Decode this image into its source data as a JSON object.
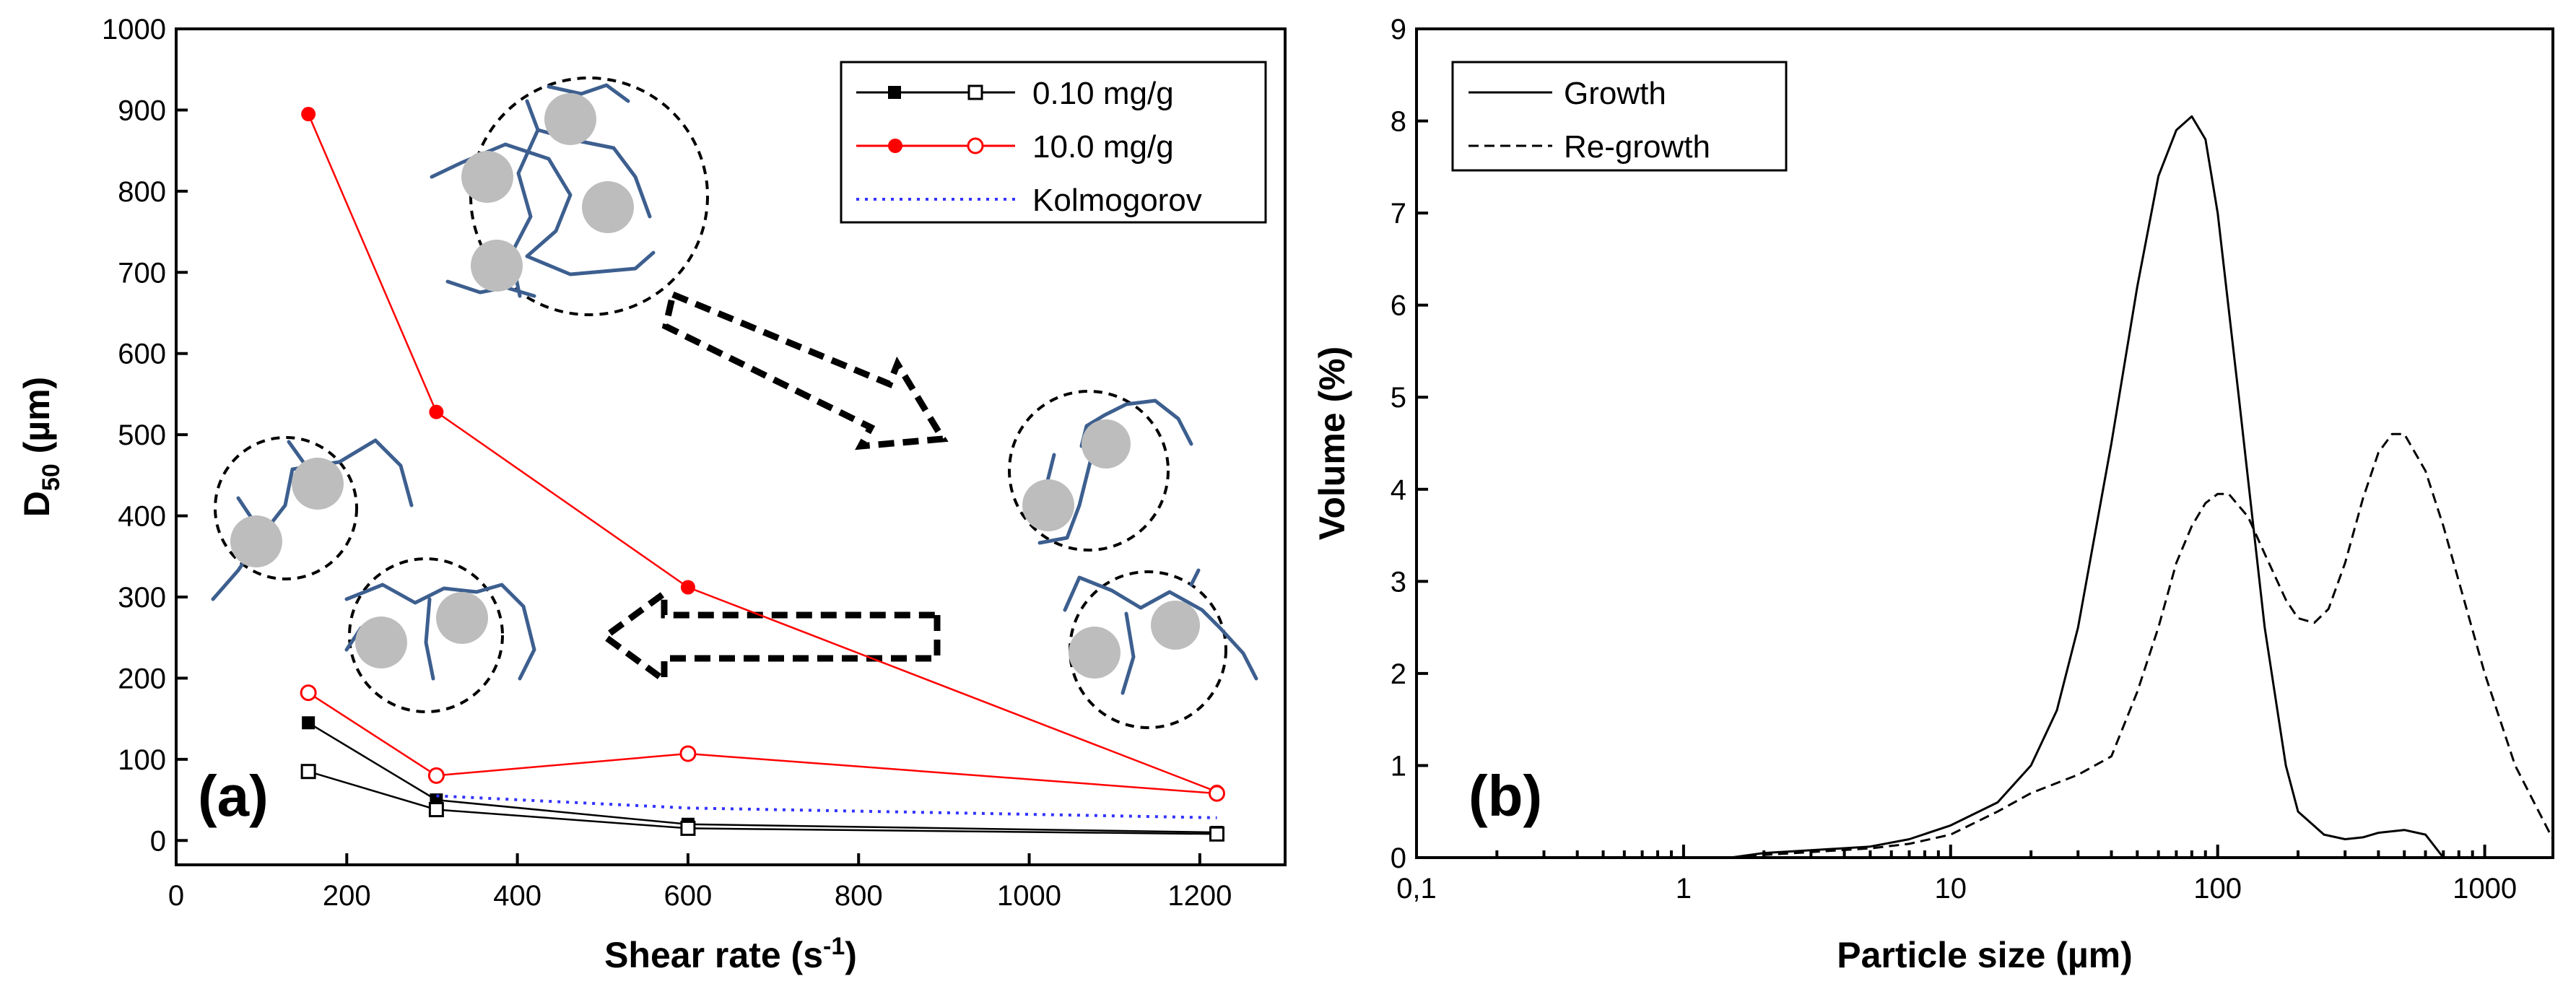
{
  "chart_data": [
    {
      "type": "line",
      "panel_label": "(a)",
      "xlabel": "Shear rate (s",
      "xlabel_sup": "-1",
      "xlabel_end": ")",
      "ylabel": "D",
      "ylabel_sub": "50",
      "ylabel_end": " (µm)",
      "xlim": [
        0,
        1300
      ],
      "ylim": [
        -30,
        1000
      ],
      "xticks": [
        0,
        200,
        400,
        600,
        800,
        1000,
        1200
      ],
      "yticks": [
        0,
        100,
        200,
        300,
        400,
        500,
        600,
        700,
        800,
        900,
        1000
      ],
      "legend_position": "top-right",
      "legend": [
        "0.10 mg/g",
        "10.0 mg/g",
        "Kolmogorov"
      ],
      "series": [
        {
          "name": "0.10 mg/g (filled)",
          "color": "#000000",
          "marker": "square-filled",
          "x": [
            155,
            305,
            600,
            1220
          ],
          "y": [
            145,
            50,
            20,
            10
          ]
        },
        {
          "name": "0.10 mg/g (open)",
          "color": "#000000",
          "marker": "square-open",
          "x": [
            155,
            305,
            600,
            1220
          ],
          "y": [
            85,
            38,
            15,
            8
          ]
        },
        {
          "name": "10.0 mg/g (filled)",
          "color": "#ff0000",
          "marker": "circle-filled",
          "x": [
            155,
            305,
            600,
            1220
          ],
          "y": [
            895,
            528,
            312,
            60
          ]
        },
        {
          "name": "10.0 mg/g (open)",
          "color": "#ff0000",
          "marker": "circle-open",
          "x": [
            155,
            305,
            600,
            1220
          ],
          "y": [
            182,
            80,
            107,
            58
          ]
        },
        {
          "name": "Kolmogorov",
          "color": "#3333ff",
          "marker": "none",
          "dash": "dotted",
          "x": [
            305,
            600,
            1220
          ],
          "y": [
            55,
            40,
            28
          ]
        }
      ],
      "illustrations": [
        "flocs-large",
        "arrow-right",
        "arrow-left",
        "flocs-small"
      ]
    },
    {
      "type": "line",
      "panel_label": "(b)",
      "xlabel": "Particle size (µm)",
      "ylabel": "Volume (%)",
      "xscale": "log",
      "xlim": [
        0.1,
        1800
      ],
      "ylim": [
        0,
        9
      ],
      "xticks": [
        0.1,
        1,
        10,
        100,
        1000
      ],
      "xtick_labels": [
        "0,1",
        "1",
        "10",
        "100",
        "1000"
      ],
      "yticks": [
        0,
        1,
        2,
        3,
        4,
        5,
        6,
        7,
        8,
        9
      ],
      "legend_position": "top-left",
      "legend": [
        "Growth",
        "Re-growth"
      ],
      "series": [
        {
          "name": "Growth",
          "color": "#000000",
          "dash": "solid",
          "x": [
            1.5,
            2,
            3,
            5,
            7,
            10,
            15,
            20,
            25,
            30,
            40,
            50,
            60,
            70,
            80,
            90,
            100,
            120,
            150,
            180,
            200,
            250,
            300,
            350,
            400,
            500,
            600,
            700
          ],
          "y": [
            0,
            0.05,
            0.08,
            0.12,
            0.2,
            0.35,
            0.6,
            1.0,
            1.6,
            2.5,
            4.5,
            6.2,
            7.4,
            7.9,
            8.05,
            7.8,
            7.0,
            5.0,
            2.5,
            1.0,
            0.5,
            0.25,
            0.2,
            0.22,
            0.27,
            0.3,
            0.25,
            0
          ]
        },
        {
          "name": "Re-growth",
          "color": "#000000",
          "dash": "dashed",
          "x": [
            1.5,
            2,
            3,
            5,
            7,
            10,
            15,
            20,
            30,
            40,
            50,
            60,
            70,
            80,
            90,
            100,
            110,
            130,
            150,
            180,
            200,
            230,
            260,
            300,
            350,
            400,
            450,
            500,
            600,
            700,
            800,
            1000,
            1300,
            1800
          ],
          "y": [
            0,
            0.03,
            0.06,
            0.1,
            0.15,
            0.25,
            0.5,
            0.7,
            0.9,
            1.1,
            1.8,
            2.5,
            3.2,
            3.6,
            3.85,
            3.95,
            3.95,
            3.7,
            3.3,
            2.8,
            2.6,
            2.55,
            2.7,
            3.2,
            3.9,
            4.4,
            4.6,
            4.6,
            4.2,
            3.6,
            3.0,
            2.0,
            1.0,
            0.2
          ]
        }
      ]
    }
  ]
}
